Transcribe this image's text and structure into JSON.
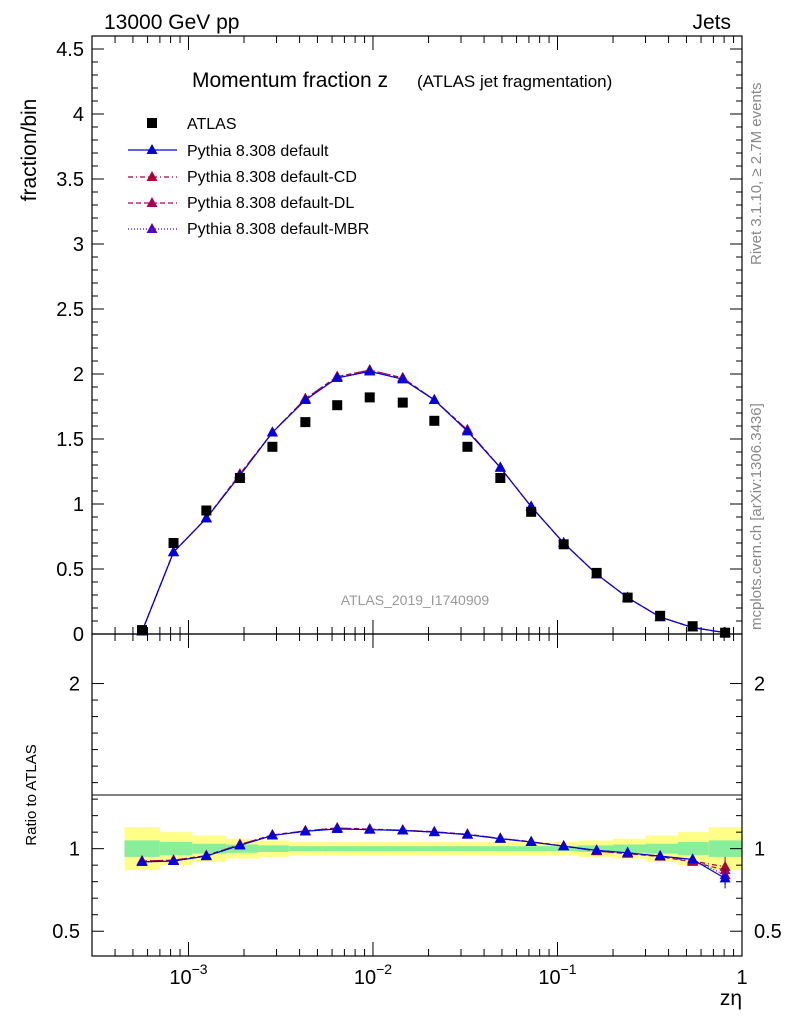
{
  "header": {
    "left": "13000 GeV pp",
    "right": "Jets"
  },
  "side": {
    "rivet": "Rivet 3.1.10, ≥ 2.7M events",
    "mcplots": "mcplots.cern.ch [arXiv:1306.3436]"
  },
  "chart_data": [
    {
      "type": "scatter",
      "title_main": "Momentum fraction z",
      "title_sub": "(ATLAS jet fragmentation)",
      "watermark": "ATLAS_2019_I1740909",
      "ylabel": "fraction/bin",
      "xscale": "log",
      "xlim": [
        0.0003,
        1
      ],
      "ylim": [
        0,
        4.6
      ],
      "yticks": [
        0,
        0.5,
        1,
        1.5,
        2,
        2.5,
        3,
        3.5,
        4,
        4.5
      ],
      "ytick_labels": [
        "0",
        "0.5",
        "1",
        "1.5",
        "2",
        "2.5",
        "3",
        "3.5",
        "4",
        "4.5"
      ],
      "legend_position": "top-left",
      "x": [
        0.00056,
        0.00083,
        0.00125,
        0.0019,
        0.00285,
        0.0043,
        0.0064,
        0.0096,
        0.0145,
        0.0215,
        0.0325,
        0.049,
        0.072,
        0.108,
        0.163,
        0.24,
        0.36,
        0.54,
        0.81
      ],
      "series": [
        {
          "name": "ATLAS",
          "color": "#000000",
          "marker": "square",
          "line": "none",
          "values": [
            0.03,
            0.7,
            0.95,
            1.2,
            1.44,
            1.63,
            1.76,
            1.82,
            1.78,
            1.64,
            1.44,
            1.2,
            0.94,
            0.69,
            0.47,
            0.28,
            0.14,
            0.06,
            0.01
          ]
        },
        {
          "name": "Pythia 8.308 default",
          "color": "#0000dd",
          "marker": "triangle",
          "line": "solid",
          "values": [
            0.02,
            0.63,
            0.89,
            1.22,
            1.55,
            1.8,
            1.97,
            2.02,
            1.96,
            1.8,
            1.56,
            1.28,
            0.98,
            0.7,
            0.46,
            0.28,
            0.13,
            0.05,
            0.01
          ]
        },
        {
          "name": "Pythia 8.308 default-CD",
          "color": "#aa0033",
          "marker": "triangle",
          "line": "dashdot",
          "values": [
            0.02,
            0.63,
            0.89,
            1.23,
            1.55,
            1.81,
            1.98,
            2.03,
            1.97,
            1.8,
            1.57,
            1.28,
            0.98,
            0.7,
            0.46,
            0.28,
            0.13,
            0.05,
            0.01
          ]
        },
        {
          "name": "Pythia 8.308 default-DL",
          "color": "#aa0055",
          "marker": "triangle",
          "line": "dashed",
          "values": [
            0.02,
            0.63,
            0.89,
            1.23,
            1.55,
            1.81,
            1.98,
            2.03,
            1.97,
            1.8,
            1.57,
            1.28,
            0.98,
            0.7,
            0.46,
            0.28,
            0.13,
            0.05,
            0.01
          ]
        },
        {
          "name": "Pythia 8.308 default-MBR",
          "color": "#5500cc",
          "marker": "triangle",
          "line": "dotted",
          "values": [
            0.02,
            0.63,
            0.89,
            1.22,
            1.55,
            1.8,
            1.97,
            2.02,
            1.96,
            1.8,
            1.56,
            1.28,
            0.98,
            0.7,
            0.46,
            0.28,
            0.13,
            0.05,
            0.01
          ]
        }
      ]
    },
    {
      "type": "line",
      "ylabel": "Ratio to ATLAS",
      "xlabel": "zη",
      "xscale": "log",
      "xlim": [
        0.0003,
        1
      ],
      "ylim": [
        0.35,
        2.3
      ],
      "yticks": [
        0.5,
        1,
        2
      ],
      "ytick_labels": [
        "0.5",
        "1",
        "2"
      ],
      "xticks": [
        0.001,
        0.01,
        0.1,
        1
      ],
      "xtick_labels": [
        {
          "base": "10",
          "exp": "−3"
        },
        {
          "base": "10",
          "exp": "−2"
        },
        {
          "base": "10",
          "exp": "−1"
        },
        {
          "base": "1",
          "exp": ""
        }
      ],
      "band_edges": [
        0.00045,
        0.0007,
        0.00105,
        0.0016,
        0.0024,
        0.0035,
        0.0053,
        0.008,
        0.012,
        0.018,
        0.027,
        0.04,
        0.06,
        0.09,
        0.13,
        0.2,
        0.3,
        0.45,
        0.66,
        1.0
      ],
      "band_yellow": [
        0.13,
        0.1,
        0.08,
        0.06,
        0.05,
        0.04,
        0.04,
        0.04,
        0.04,
        0.04,
        0.04,
        0.04,
        0.04,
        0.04,
        0.05,
        0.06,
        0.08,
        0.1,
        0.13
      ],
      "band_green": [
        0.05,
        0.04,
        0.03,
        0.025,
        0.02,
        0.015,
        0.015,
        0.015,
        0.015,
        0.015,
        0.015,
        0.015,
        0.015,
        0.015,
        0.02,
        0.025,
        0.03,
        0.04,
        0.05
      ],
      "x": [
        0.00056,
        0.00083,
        0.00125,
        0.0019,
        0.00285,
        0.0043,
        0.0064,
        0.0096,
        0.0145,
        0.0215,
        0.0325,
        0.049,
        0.072,
        0.108,
        0.163,
        0.24,
        0.36,
        0.54,
        0.81
      ],
      "series": [
        {
          "name": "Pythia 8.308 default",
          "color": "#0000dd",
          "line": "solid",
          "values": [
            0.92,
            0.925,
            0.955,
            1.02,
            1.08,
            1.105,
            1.12,
            1.115,
            1.11,
            1.1,
            1.085,
            1.06,
            1.04,
            1.015,
            0.99,
            0.975,
            0.955,
            0.935,
            0.82
          ]
        },
        {
          "name": "Pythia 8.308 default-CD",
          "color": "#aa0033",
          "line": "dashdot",
          "values": [
            0.925,
            0.93,
            0.958,
            1.025,
            1.083,
            1.108,
            1.125,
            1.118,
            1.112,
            1.102,
            1.087,
            1.062,
            1.042,
            1.016,
            0.985,
            0.97,
            0.955,
            0.925,
            0.89
          ]
        },
        {
          "name": "Pythia 8.308 default-DL",
          "color": "#aa0055",
          "line": "dashed",
          "values": [
            0.925,
            0.93,
            0.958,
            1.025,
            1.083,
            1.108,
            1.125,
            1.118,
            1.112,
            1.102,
            1.087,
            1.062,
            1.042,
            1.016,
            0.985,
            0.97,
            0.952,
            0.92,
            0.87
          ]
        },
        {
          "name": "Pythia 8.308 default-MBR",
          "color": "#5500cc",
          "line": "dotted",
          "values": [
            0.92,
            0.925,
            0.955,
            1.02,
            1.08,
            1.105,
            1.12,
            1.115,
            1.11,
            1.1,
            1.085,
            1.06,
            1.04,
            1.015,
            0.99,
            0.975,
            0.955,
            0.935,
            0.84
          ]
        }
      ]
    }
  ]
}
